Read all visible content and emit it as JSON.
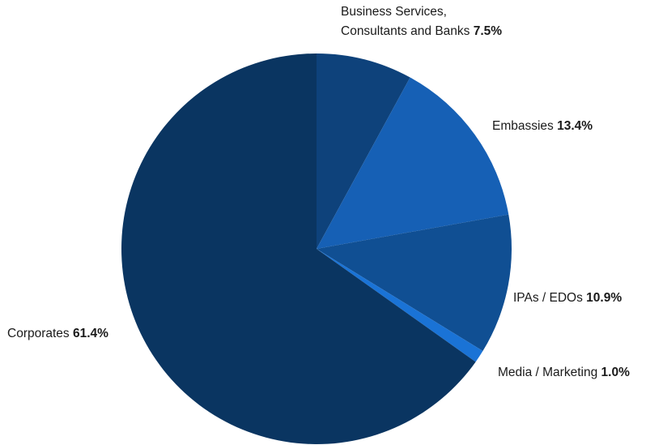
{
  "chart_data": {
    "type": "pie",
    "title": "",
    "slices": [
      {
        "name_lines": [
          "Business Services,",
          "Consultants and Banks"
        ],
        "value": 7.5,
        "value_label": "7.5%",
        "color": "#0e427b"
      },
      {
        "name_lines": [
          "Embassies"
        ],
        "value": 13.4,
        "value_label": "13.4%",
        "color": "#1660b5"
      },
      {
        "name_lines": [
          "IPAs / EDOs"
        ],
        "value": 10.9,
        "value_label": "10.9%",
        "color": "#104f93"
      },
      {
        "name_lines": [
          "Media / Marketing"
        ],
        "value": 1.0,
        "value_label": "1.0%",
        "color": "#1a73d6"
      },
      {
        "name_lines": [
          "Corporates"
        ],
        "value": 61.4,
        "value_label": "61.4%",
        "color": "#0a3561"
      }
    ],
    "start_angle_deg": 0,
    "direction": "clockwise",
    "legend": "none",
    "labels_outside": true
  }
}
